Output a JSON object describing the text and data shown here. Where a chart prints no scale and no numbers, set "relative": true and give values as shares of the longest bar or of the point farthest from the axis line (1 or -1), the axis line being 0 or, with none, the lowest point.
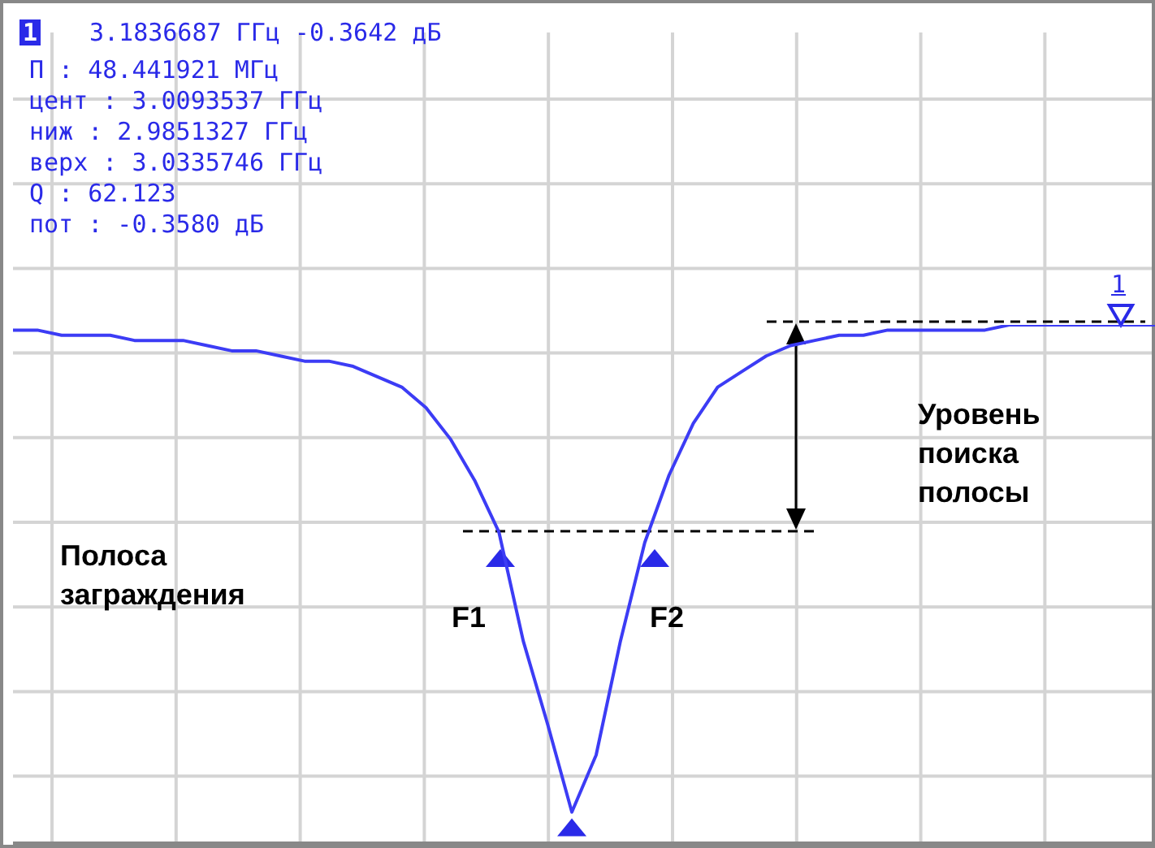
{
  "chart_data": {
    "type": "line",
    "relative": true,
    "grid": true,
    "marker": "none",
    "categories": [
      null,
      null,
      null,
      null,
      null,
      null,
      null,
      null,
      null,
      null,
      null,
      null,
      null,
      null,
      null,
      null,
      null,
      null,
      null,
      null,
      null,
      null,
      null,
      null,
      null,
      null,
      null,
      null,
      null,
      null,
      null,
      null,
      null,
      null,
      null,
      null,
      null,
      null,
      null,
      null,
      null,
      null,
      null,
      null,
      null,
      null,
      null,
      null
    ],
    "series": [
      {
        "color": "#3c3cf5",
        "values": [
          0.99,
          0.99,
          0.98,
          0.98,
          0.98,
          0.97,
          0.97,
          0.97,
          0.96,
          0.95,
          0.95,
          0.94,
          0.93,
          0.93,
          0.92,
          0.9,
          0.88,
          0.84,
          0.78,
          0.7,
          0.6,
          0.39,
          0.23,
          0.06,
          0.17,
          0.39,
          0.58,
          0.71,
          0.81,
          0.88,
          0.91,
          0.94,
          0.96,
          0.97,
          0.98,
          0.98,
          0.99,
          0.99,
          0.99,
          0.99,
          0.99,
          1,
          1,
          1,
          1,
          1,
          1,
          1
        ]
      }
    ],
    "annotations": [
      "1",
      "3.1836687 ГГц -0.3642 дБ",
      "П : 48.441921 МГц",
      "цент : 3.0093537 ГГц",
      "ниж : 2.9851327 ГГц",
      "верх : 3.0335746 ГГц",
      "Q : 62.123",
      "пот : -0.3580 дБ",
      "Полоса заграждения",
      "Уровень поиска полосы",
      "F1",
      "F2",
      "1"
    ]
  }
}
